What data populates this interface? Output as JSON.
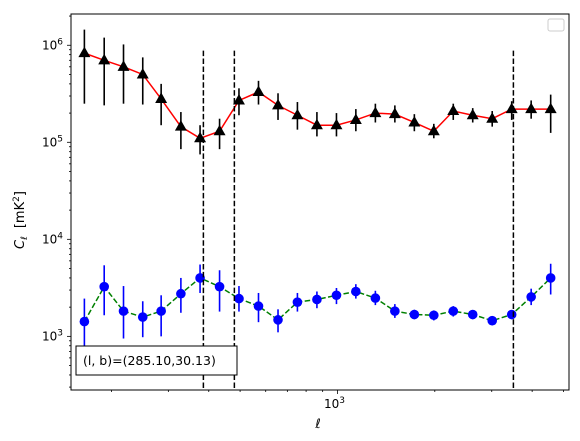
{
  "chart_data": {
    "type": "scatter",
    "x_scale": "log",
    "y_scale": "log",
    "xlim": [
      150,
      5200
    ],
    "ylim": [
      280,
      2100000
    ],
    "xlabel": "ℓ",
    "ylabel_main": "C",
    "ylabel_sub": "ℓ",
    "ylabel_unit_open": "[mK",
    "ylabel_unit_exp": "2",
    "ylabel_unit_close": "]",
    "x_tick_labels": [
      {
        "value": 1000,
        "base": "10",
        "exp": "3"
      }
    ],
    "y_tick_labels": [
      {
        "value": 1000,
        "base": "10",
        "exp": "3"
      },
      {
        "value": 10000,
        "base": "10",
        "exp": "4"
      },
      {
        "value": 100000,
        "base": "10",
        "exp": "5"
      },
      {
        "value": 1000000,
        "base": "10",
        "exp": "6"
      }
    ],
    "vlines": [
      385,
      480,
      3500
    ],
    "legend": "top-right",
    "annotation": "(l, b)=(285.10,30.13)",
    "series": [
      {
        "color": "#000000",
        "line_color": "#ff0000",
        "line_style": "solid",
        "marker": "triangle",
        "x": [
          165,
          190,
          218,
          250,
          285,
          328,
          376,
          432,
          496,
          570,
          655,
          752,
          864,
          993,
          1140,
          1310,
          1505,
          1729,
          1986,
          2281,
          2620,
          3010,
          3458,
          3972,
          4564
        ],
        "y": [
          830000,
          700000,
          600000,
          500000,
          280000,
          145000,
          110000,
          130000,
          270000,
          330000,
          240000,
          190000,
          150000,
          150000,
          170000,
          200000,
          195000,
          160000,
          130000,
          210000,
          190000,
          175000,
          220000,
          220000,
          220000
        ],
        "err_lo": [
          250000,
          240000,
          250000,
          245000,
          150000,
          85000,
          75000,
          85000,
          190000,
          245000,
          170000,
          135000,
          115000,
          115000,
          130000,
          160000,
          160000,
          130000,
          110000,
          170000,
          160000,
          145000,
          170000,
          175000,
          125000
        ],
        "err_hi": [
          1450000,
          1200000,
          1020000,
          750000,
          400000,
          205000,
          150000,
          175000,
          360000,
          430000,
          320000,
          260000,
          205000,
          200000,
          220000,
          250000,
          240000,
          195000,
          155000,
          250000,
          225000,
          210000,
          265000,
          270000,
          310000
        ]
      },
      {
        "color": "#0000ff",
        "line_color": "#008000",
        "line_style": "dashed",
        "marker": "circle",
        "x": [
          165,
          190,
          218,
          250,
          285,
          328,
          376,
          432,
          496,
          570,
          655,
          752,
          864,
          993,
          1140,
          1310,
          1505,
          1729,
          1986,
          2281,
          2620,
          3010,
          3458,
          3972,
          4564
        ],
        "y": [
          1420,
          3250,
          1820,
          1580,
          1820,
          2750,
          4000,
          3250,
          2450,
          2050,
          1480,
          2250,
          2400,
          2650,
          2900,
          2480,
          1820,
          1680,
          1650,
          1820,
          1680,
          1450,
          1680,
          2550,
          4000
        ],
        "err_lo": [
          750,
          1650,
          950,
          980,
          1000,
          1750,
          2800,
          1800,
          1800,
          1400,
          1100,
          1800,
          1950,
          2150,
          2450,
          2100,
          1550,
          1500,
          1460,
          1600,
          1500,
          1300,
          1500,
          2100,
          2700
        ],
        "err_hi": [
          2450,
          5400,
          3300,
          2300,
          2650,
          4000,
          5500,
          4800,
          3300,
          2800,
          1900,
          2800,
          2900,
          3150,
          3450,
          2950,
          2150,
          1880,
          1850,
          2050,
          1850,
          1620,
          1860,
          3100,
          5600
        ]
      }
    ]
  }
}
